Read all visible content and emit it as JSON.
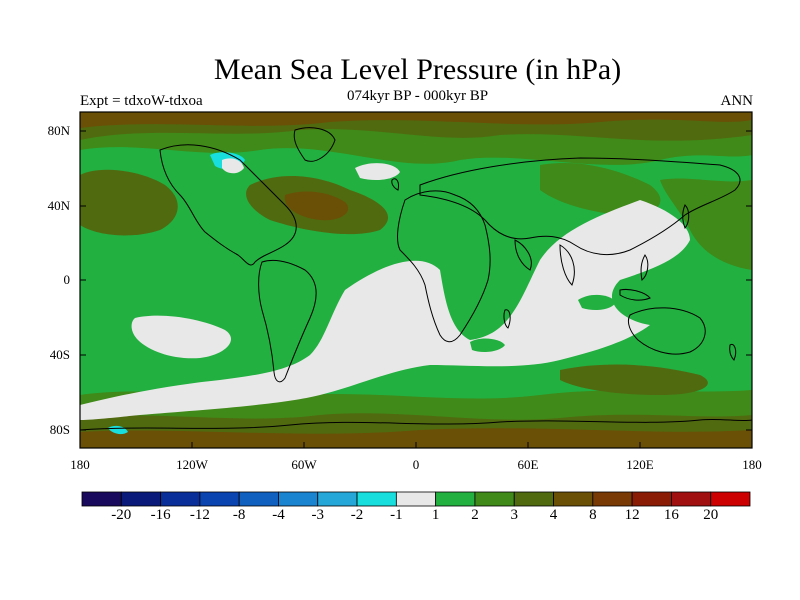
{
  "header": {
    "title": "Mean Sea Level Pressure (in hPa)",
    "subtitle": "074kyr BP - 000kyr BP",
    "left_label": "Expt = tdxoW-tdxoa",
    "right_label": "ANN"
  },
  "axes": {
    "y_ticks": [
      "80N",
      "40N",
      "0",
      "40S",
      "80S"
    ],
    "x_ticks": [
      "180",
      "120W",
      "60W",
      "0",
      "60E",
      "120E",
      "180"
    ]
  },
  "colorbar": {
    "labels": [
      "-20",
      "-16",
      "-12",
      "-8",
      "-4",
      "-3",
      "-2",
      "-1",
      "1",
      "2",
      "3",
      "4",
      "8",
      "12",
      "16",
      "20"
    ],
    "colors": [
      "#1a0a5e",
      "#0a1a7a",
      "#0a2e99",
      "#0a44b0",
      "#1060c0",
      "#1a84d0",
      "#25a8d8",
      "#18dede",
      "#e8e8e8",
      "#22b040",
      "#3f8a18",
      "#506a10",
      "#6a5006",
      "#7a3a06",
      "#8a1c06",
      "#a01010",
      "#cc0000"
    ]
  },
  "legend_colors": {
    "neutral": "#e8e8e8",
    "light_green": "#22b040",
    "mid_green": "#3f8a18",
    "olive": "#506a10",
    "brown": "#6a5006",
    "cyan": "#18dede"
  }
}
